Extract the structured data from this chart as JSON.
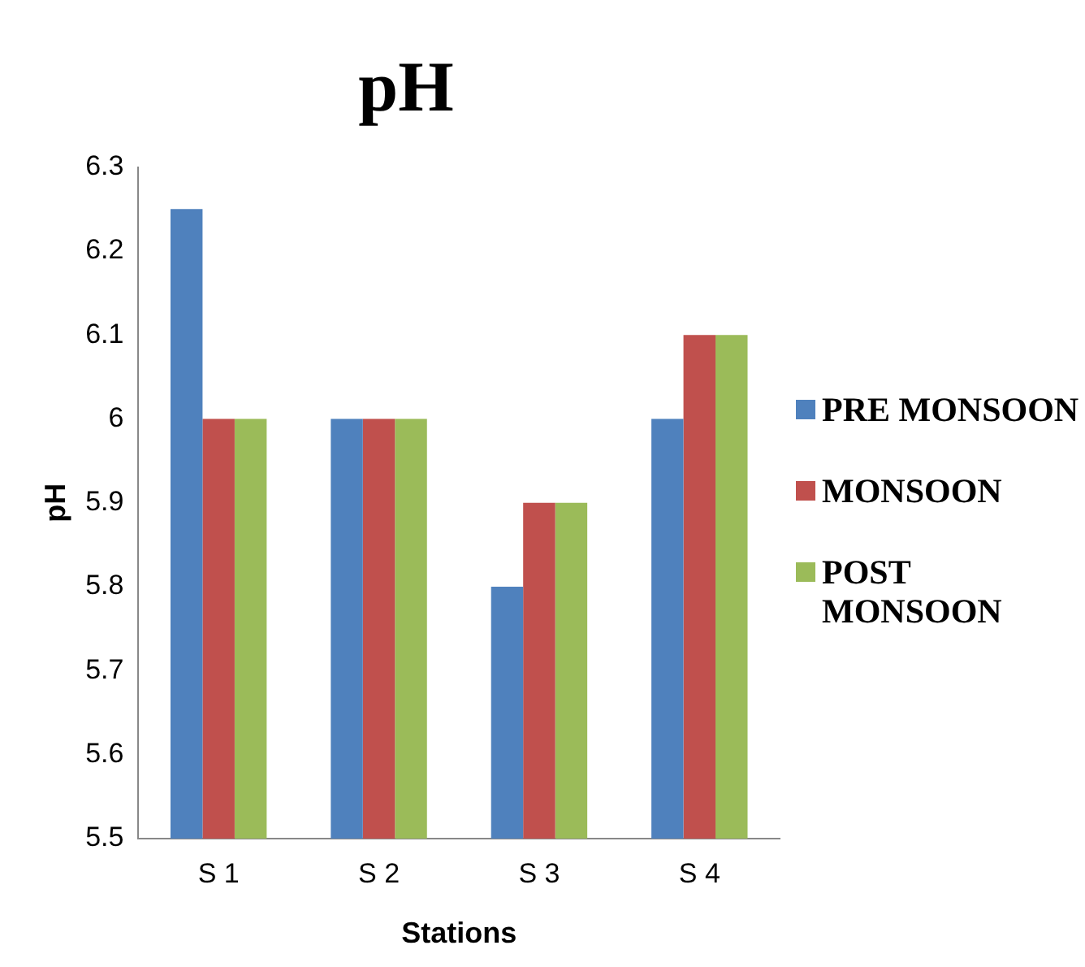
{
  "chart_data": {
    "type": "bar",
    "title": "pH",
    "xlabel": "Stations",
    "ylabel": "pH",
    "categories": [
      "S 1",
      "S 2",
      "S 3",
      "S 4"
    ],
    "series": [
      {
        "name": "PRE MONSOON",
        "color": "#4f81bd",
        "values": [
          6.25,
          6,
          5.8,
          6
        ]
      },
      {
        "name": "MONSOON",
        "color": "#c0504d",
        "values": [
          6,
          6,
          5.9,
          6.1
        ]
      },
      {
        "name": "POST MONSOON",
        "color": "#9bbb59",
        "values": [
          6,
          6,
          5.9,
          6.1
        ]
      }
    ],
    "ylim": [
      5.5,
      6.3
    ],
    "yticks": [
      5.5,
      5.6,
      5.7,
      5.8,
      5.9,
      6,
      6.1,
      6.2,
      6.3
    ],
    "grid": false,
    "legend": "right"
  }
}
